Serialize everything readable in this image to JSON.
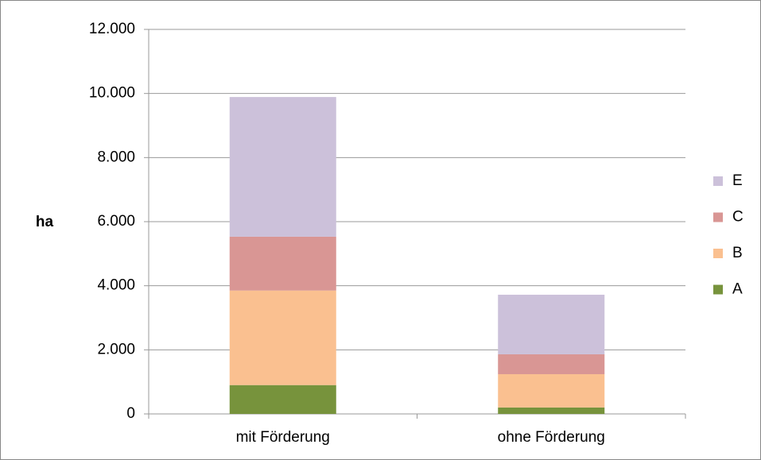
{
  "chart_data": {
    "type": "stacked-bar",
    "y_label": "ha",
    "categories": [
      "mit Förderung",
      "ohne Förderung"
    ],
    "series": [
      {
        "name": "A",
        "color": "#77933c",
        "values": [
          900,
          200
        ]
      },
      {
        "name": "B",
        "color": "#fac090",
        "values": [
          2950,
          1040
        ]
      },
      {
        "name": "C",
        "color": "#d99694",
        "values": [
          1680,
          620
        ]
      },
      {
        "name": "E",
        "color": "#ccc1da",
        "values": [
          4360,
          1860
        ]
      }
    ],
    "ylim": [
      0,
      12000
    ],
    "yticks": [
      0,
      {
        "value": 2000,
        "label": "2.000"
      },
      {
        "value": 4000,
        "label": "4.000"
      },
      {
        "value": 6000,
        "label": "6.000"
      },
      {
        "value": 8000,
        "label": "8.000"
      },
      {
        "value": 10000,
        "label": "10.000"
      },
      {
        "value": 12000,
        "label": "12.000"
      }
    ],
    "grid": true,
    "legend": "right"
  }
}
